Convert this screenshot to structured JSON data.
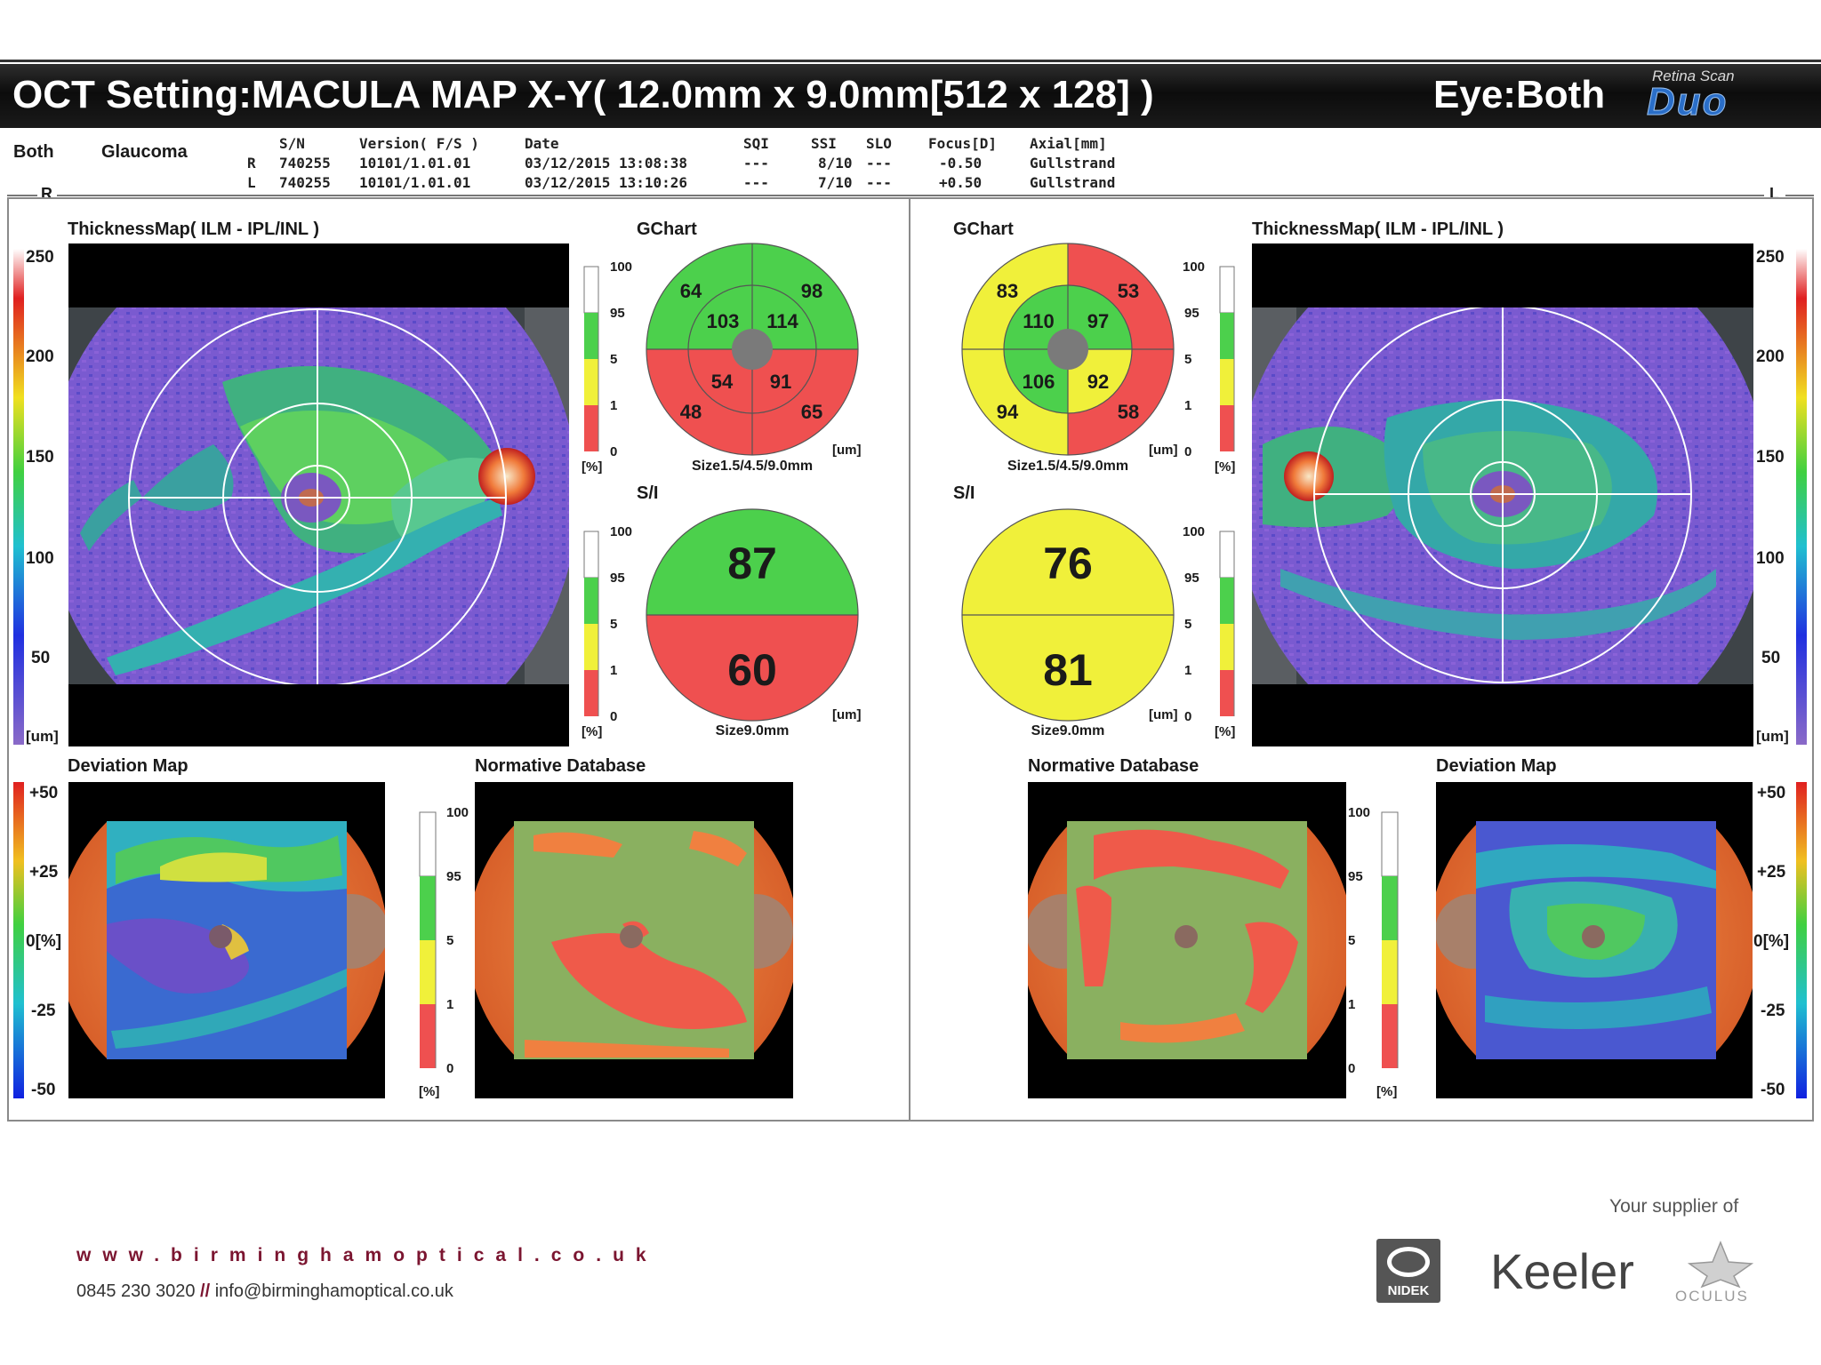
{
  "header": {
    "title": "OCT Setting:MACULA MAP X-Y( 12.0mm x 9.0mm[512 x 128] )",
    "eye": "Eye:Both",
    "brand_small": "Retina Scan",
    "brand_big": "Duo"
  },
  "patient": {
    "eye_mode": "Both",
    "diagnosis": "Glaucoma"
  },
  "scan_table": {
    "headers": [
      "S/N",
      "Version( F/S )",
      "Date",
      "SQI",
      "SSI",
      "SLO",
      "Focus[D]",
      "Axial[mm]"
    ],
    "rows": [
      {
        "eye": "R",
        "sn": "740255",
        "version": "10101/1.01.01",
        "date": "03/12/2015 13:08:38",
        "sqi": "---",
        "ssi": "8/10",
        "slo": "---",
        "focus": "-0.50",
        "axial": "Gullstrand"
      },
      {
        "eye": "L",
        "sn": "740255",
        "version": "10101/1.01.01",
        "date": "03/12/2015 13:10:26",
        "sqi": "---",
        "ssi": "7/10",
        "slo": "---",
        "focus": "+0.50",
        "axial": "Gullstrand"
      }
    ]
  },
  "side_labels": {
    "right": "R",
    "left": "L"
  },
  "labels": {
    "thickness_map": "ThicknessMap( ILM - IPL/INL )",
    "gchart": "GChart",
    "si": "S/I",
    "deviation_map": "Deviation Map",
    "normative_db": "Normative Database",
    "gchart_size": "Size1.5/4.5/9.0mm",
    "si_size": "Size9.0mm",
    "unit_um": "[um]",
    "unit_pct": "[%]"
  },
  "thickness_scale": [
    "250",
    "200",
    "150",
    "100",
    "50",
    "[um]"
  ],
  "deviation_scale": [
    "+50",
    "+25",
    "0[%]",
    "-25",
    "-50"
  ],
  "percentile_scale": [
    "100",
    "95",
    "5",
    "1",
    "0"
  ],
  "colors": {
    "normal_green": "#4cd04c",
    "borderline_yellow": "#f0f03a",
    "abnormal_red": "#ef5050",
    "center_gray": "#7a7a7a",
    "retina_purple": "#6a4fc0",
    "link_maroon": "#7b1530"
  },
  "right_eye": {
    "gchart": {
      "outer_tl": "64",
      "outer_tr": "98",
      "outer_bl": "48",
      "outer_br": "65",
      "inner_tl": "103",
      "inner_tr": "114",
      "inner_bl": "54",
      "inner_br": "91"
    },
    "si": {
      "superior": "87",
      "inferior": "60"
    }
  },
  "left_eye": {
    "gchart": {
      "outer_tl": "83",
      "outer_tr": "53",
      "outer_bl": "94",
      "outer_br": "58",
      "inner_tl": "110",
      "inner_tr": "97",
      "inner_bl": "106",
      "inner_br": "92"
    },
    "si": {
      "superior": "76",
      "inferior": "81"
    }
  },
  "footer": {
    "url_main": "www.birminghamoptical",
    "url_tld": ".co.uk",
    "phone": "0845 230 3020",
    "separator": "//",
    "email": "info@birminghamoptical.co.uk",
    "supplier_text": "Your supplier of",
    "logos": {
      "nidek": "NIDEK",
      "keeler": "Keeler",
      "oculus": "OCULUS"
    }
  }
}
